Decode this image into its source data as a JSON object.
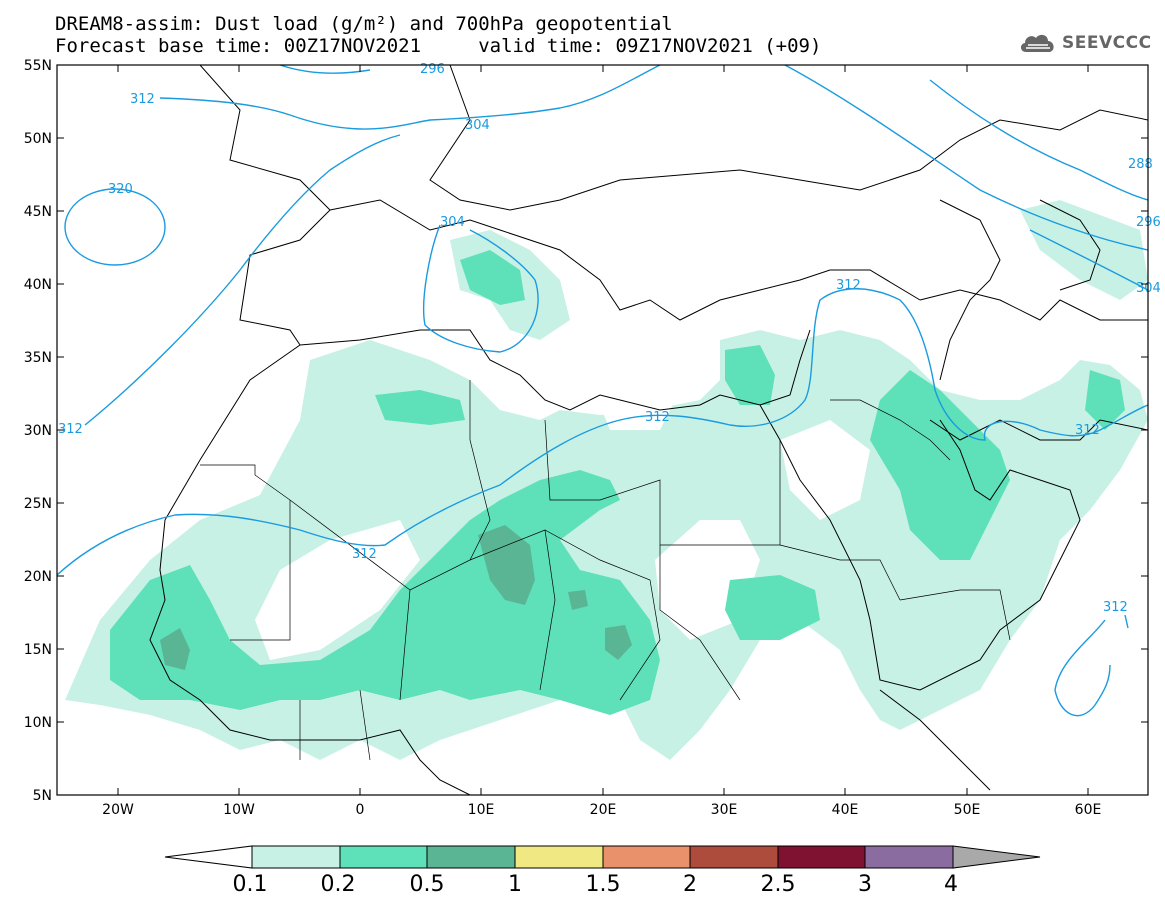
{
  "title": {
    "line1": "DREAM8-assim: Dust load (g/m²) and 700hPa geopotential",
    "line2": "Forecast base time: 00Z17NOV2021     valid time: 09Z17NOV2021 (+09)"
  },
  "logo": {
    "text": "SEEVCCC",
    "icon": "cloud-icon"
  },
  "axes": {
    "lat_ticks": [
      "55N",
      "50N",
      "45N",
      "40N",
      "35N",
      "30N",
      "25N",
      "20N",
      "15N",
      "10N",
      "5N"
    ],
    "lon_ticks": [
      "20W",
      "10W",
      "0",
      "10E",
      "20E",
      "30E",
      "40E",
      "50E",
      "60E"
    ]
  },
  "contour_labels": [
    "312",
    "320",
    "304",
    "304",
    "296",
    "312",
    "312",
    "312",
    "312",
    "312",
    "288",
    "296",
    "304"
  ],
  "colorbar": {
    "labels": [
      "0.1",
      "0.2",
      "0.5",
      "1",
      "1.5",
      "2",
      "2.5",
      "3",
      "4"
    ],
    "colors": [
      "#ffffff",
      "#c8f1e6",
      "#5ee0b9",
      "#5ab595",
      "#f0e882",
      "#e8916a",
      "#ad4b3c",
      "#7f1231",
      "#8b6ca0",
      "#a9a9a9"
    ]
  },
  "colors": {
    "contour": "#1a9be0",
    "dust_low": "#c8f1e6",
    "dust_mid": "#5ee0b9",
    "dust_high": "#5ab595"
  }
}
